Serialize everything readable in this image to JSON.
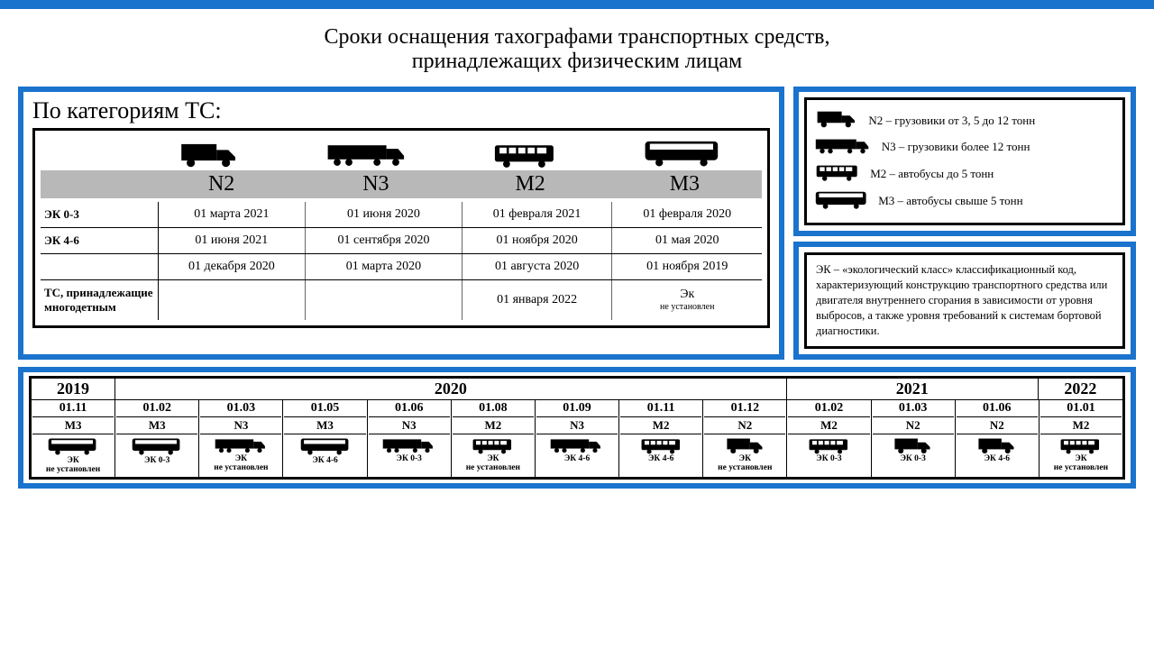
{
  "colors": {
    "accent": "#1a73cc",
    "icon": "#000000",
    "cat_bg": "#b8b8b8"
  },
  "title_l1": "Сроки оснащения тахографами транспортных средств,",
  "title_l2": "принадлежащих физическим лицам",
  "subtitle": "По категориям ТС:",
  "categories": [
    "N2",
    "N3",
    "M2",
    "M3"
  ],
  "category_icons": [
    "truck_small",
    "truck_long",
    "bus_small",
    "bus_large"
  ],
  "schedule_rows": [
    {
      "label": "ЭК 0-3",
      "cells": [
        "01 марта 2021",
        "01 июня 2020",
        "01 февраля 2021",
        "01 февраля 2020"
      ]
    },
    {
      "label": "ЭК 4-6",
      "cells": [
        "01 июня 2021",
        "01 сентября 2020",
        "01 ноября 2020",
        "01 мая 2020"
      ]
    },
    {
      "label": "",
      "cells": [
        "01 декабря 2020",
        "01 марта 2020",
        "01 августа 2020",
        "01 ноября 2019"
      ]
    },
    {
      "label": "ТС, принадлежащие многодетным",
      "cells": [
        "",
        "",
        "01 января 2022",
        "Эк\nне установлен"
      ]
    }
  ],
  "legend": [
    {
      "icon": "truck_small",
      "text": "N2 – грузовики от 3, 5 до 12 тонн"
    },
    {
      "icon": "truck_long",
      "text": "N3 – грузовики более 12 тонн"
    },
    {
      "icon": "bus_small",
      "text": "M2 – автобусы до 5 тонн"
    },
    {
      "icon": "bus_large",
      "text": "M3 – автобусы свыше 5 тонн"
    }
  ],
  "ek_note": "ЭК – «экологический класс» классификационный код, характеризующий конструкцию транспортного средства или двигателя внутреннего сгорания в зависимости от уровня выбросов, а также уровня требований к системам бортовой диагностики.",
  "timeline": {
    "years": [
      {
        "label": "2019",
        "span": 1
      },
      {
        "label": "2020",
        "span": 8
      },
      {
        "label": "2021",
        "span": 3
      },
      {
        "label": "2022",
        "span": 1
      }
    ],
    "cells": [
      {
        "date": "01.11",
        "cat": "M3",
        "icon": "bus_large",
        "ek": "ЭК\nне установлен"
      },
      {
        "date": "01.02",
        "cat": "M3",
        "icon": "bus_large",
        "ek": "ЭК 0-3"
      },
      {
        "date": "01.03",
        "cat": "N3",
        "icon": "truck_long",
        "ek": "ЭК\nне установлен"
      },
      {
        "date": "01.05",
        "cat": "M3",
        "icon": "bus_large",
        "ek": "ЭК 4-6"
      },
      {
        "date": "01.06",
        "cat": "N3",
        "icon": "truck_long",
        "ek": "ЭК 0-3"
      },
      {
        "date": "01.08",
        "cat": "M2",
        "icon": "bus_small",
        "ek": "ЭК\nне установлен"
      },
      {
        "date": "01.09",
        "cat": "N3",
        "icon": "truck_long",
        "ek": "ЭК 4-6"
      },
      {
        "date": "01.11",
        "cat": "M2",
        "icon": "bus_small",
        "ek": "ЭК 4-6"
      },
      {
        "date": "01.12",
        "cat": "N2",
        "icon": "truck_small",
        "ek": "ЭК\nне установлен"
      },
      {
        "date": "01.02",
        "cat": "M2",
        "icon": "bus_small",
        "ek": "ЭК 0-3"
      },
      {
        "date": "01.03",
        "cat": "N2",
        "icon": "truck_small",
        "ek": "ЭК 0-3"
      },
      {
        "date": "01.06",
        "cat": "N2",
        "icon": "truck_small",
        "ek": "ЭК 4-6"
      },
      {
        "date": "01.01",
        "cat": "M2",
        "icon": "bus_small",
        "ek": "ЭК\nне установлен"
      }
    ]
  }
}
